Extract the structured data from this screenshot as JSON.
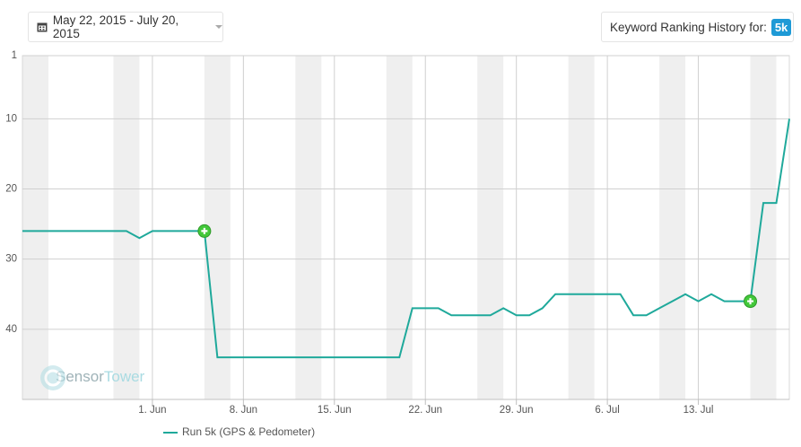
{
  "header": {
    "date_range": "May 22, 2015 - July 20, 2015",
    "ranking_label": "Keyword Ranking History for:",
    "keyword": "5k"
  },
  "watermark": [
    "Sensor",
    "Tower"
  ],
  "chart_data": {
    "type": "line",
    "categories": [
      null,
      null,
      null,
      null,
      null,
      null,
      null,
      null,
      null,
      null,
      "1. Jun",
      null,
      null,
      null,
      null,
      null,
      null,
      "8. Jun",
      null,
      null,
      null,
      null,
      null,
      null,
      "15. Jun",
      null,
      null,
      null,
      null,
      null,
      null,
      "22. Jun",
      null,
      null,
      null,
      null,
      null,
      null,
      "29. Jun",
      null,
      null,
      null,
      null,
      null,
      null,
      "6. Jul",
      null,
      null,
      null,
      null,
      null,
      null,
      "13. Jul",
      null,
      null,
      null,
      null,
      null,
      null,
      null
    ],
    "series": [
      {
        "name": "Run 5k (GPS & Pedometer)",
        "color": "#1fa99b",
        "values": [
          26,
          26,
          26,
          26,
          26,
          26,
          26,
          26,
          26,
          27,
          26,
          26,
          26,
          26,
          26,
          44,
          44,
          44,
          44,
          44,
          44,
          44,
          44,
          44,
          44,
          44,
          44,
          44,
          44,
          44,
          37,
          37,
          37,
          38,
          38,
          38,
          38,
          37,
          38,
          38,
          37,
          35,
          35,
          35,
          35,
          35,
          35,
          38,
          38,
          37,
          36,
          35,
          36,
          35,
          36,
          36,
          36,
          22,
          22,
          10
        ],
        "event_points": [
          14,
          56
        ],
        "event_color": "#43c83a"
      }
    ],
    "ylim": [
      50,
      1
    ],
    "yticks": [
      1,
      10,
      20,
      30,
      40
    ],
    "y_reversed": true,
    "grid": true,
    "legend": "bottom"
  }
}
